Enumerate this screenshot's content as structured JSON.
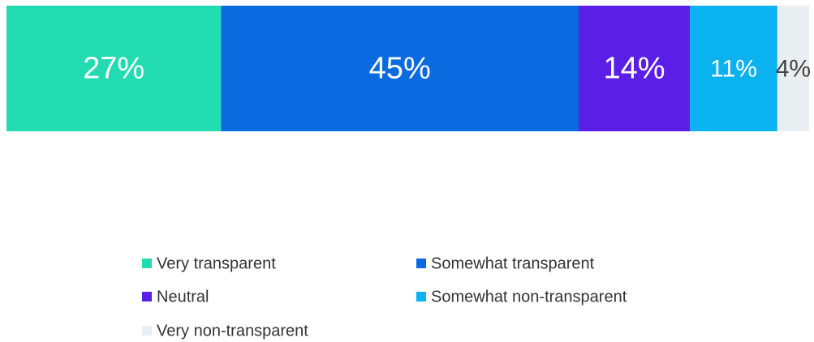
{
  "chart_data": {
    "type": "bar",
    "orientation": "horizontal",
    "stacked": true,
    "categories": [
      null
    ],
    "series": [
      {
        "name": "Very transparent",
        "color": "#22dbb0",
        "values": [
          27
        ],
        "value_labels": [
          "27%"
        ]
      },
      {
        "name": "Somewhat transparent",
        "color": "#0a6be0",
        "values": [
          45
        ],
        "value_labels": [
          "45%"
        ]
      },
      {
        "name": "Neutral",
        "color": "#5b1ee6",
        "values": [
          14
        ],
        "value_labels": [
          "14%"
        ]
      },
      {
        "name": "Somewhat non-transparent",
        "color": "#0ab3ef",
        "values": [
          11
        ],
        "value_labels": [
          "11%"
        ]
      },
      {
        "name": "Very non-transparent",
        "color": "#e9eef2",
        "values": [
          4
        ],
        "value_labels": [
          "4%"
        ]
      }
    ],
    "legend": "bottom"
  }
}
